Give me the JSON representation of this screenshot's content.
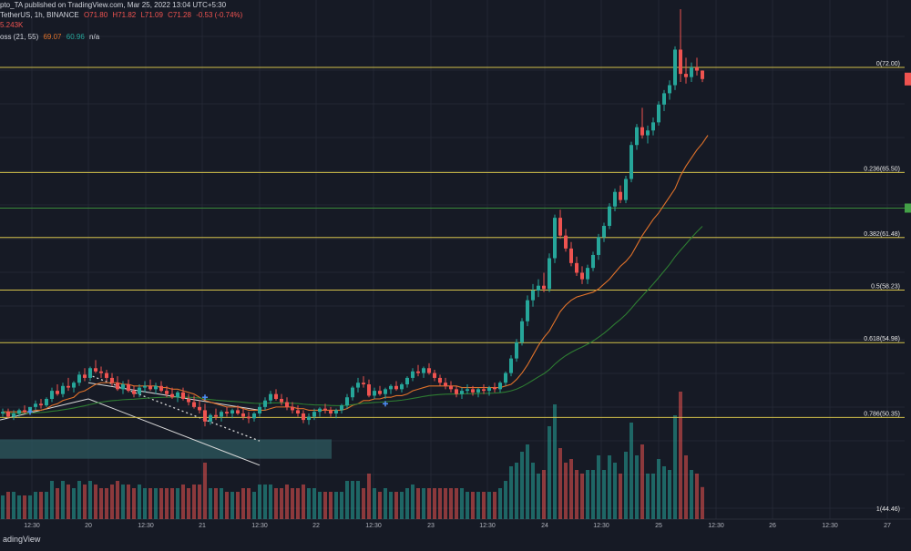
{
  "header": {
    "published": "pto_TA published on TradingView.com, Mar 25, 2022 13:04 UTC+5:30",
    "symbol": "TetherUS, 1h, BINANCE",
    "ohlc": {
      "o": "O71.80",
      "h": "H71.82",
      "l": "L71.09",
      "c": "C71.28",
      "chg": "-0.53 (-0.74%)"
    },
    "volume": "5.243K",
    "indicator": {
      "name": "oss (21, 55)",
      "v1": "69.07",
      "v2": "60.96",
      "v3": "n/a"
    }
  },
  "footer": {
    "brand": "adingView"
  },
  "colors": {
    "background": "#161a25",
    "grid": "#232734",
    "up": "#26a69a",
    "down": "#ef5350",
    "fib": "#d4c14a",
    "ema_fast": "#e0722a",
    "ema_slow": "#2e7d32",
    "text": "#b2b5be",
    "support_line": "#3a8a3a",
    "zone": "#2e5a5f"
  },
  "chart_data": {
    "type": "candlestick",
    "x_tick_labels": [
      "12:30",
      "20",
      "12:30",
      "21",
      "12:30",
      "22",
      "12:30",
      "23",
      "12:30",
      "24",
      "12:30",
      "25",
      "12:30",
      "26",
      "12:30",
      "27"
    ],
    "fib_levels": [
      {
        "label": "0(72.00)",
        "value": 72.0
      },
      {
        "label": "0.236(65.50)",
        "value": 65.5
      },
      {
        "label": "0.382(61.48)",
        "value": 61.48
      },
      {
        "label": "0.5(58.23)",
        "value": 58.23
      },
      {
        "label": "0.618(54.98)",
        "value": 54.98
      },
      {
        "label": "0.786(50.35)",
        "value": 50.35
      },
      {
        "label": "1(44.46)",
        "value": 44.46
      }
    ],
    "ylim": [
      44.46,
      76
    ],
    "support_value": 63.3,
    "current_price": 71.28,
    "candles": [
      [
        50.6,
        50.9,
        50.4,
        50.7
      ],
      [
        50.7,
        50.9,
        50.3,
        50.4
      ],
      [
        50.4,
        50.8,
        50.2,
        50.6
      ],
      [
        50.6,
        50.9,
        50.4,
        50.8
      ],
      [
        50.8,
        51.1,
        50.6,
        50.7
      ],
      [
        50.7,
        51.0,
        50.5,
        51.0
      ],
      [
        51.0,
        51.4,
        50.8,
        51.2
      ],
      [
        51.2,
        51.5,
        50.9,
        51.1
      ],
      [
        51.1,
        51.6,
        51.0,
        51.5
      ],
      [
        51.5,
        52.2,
        51.3,
        52.0
      ],
      [
        52.0,
        52.4,
        51.7,
        51.8
      ],
      [
        51.8,
        52.5,
        51.6,
        52.3
      ],
      [
        52.3,
        52.8,
        52.0,
        52.2
      ],
      [
        52.2,
        52.6,
        51.9,
        52.5
      ],
      [
        52.5,
        53.2,
        52.3,
        53.0
      ],
      [
        53.0,
        53.4,
        52.6,
        52.8
      ],
      [
        52.8,
        53.5,
        52.6,
        53.4
      ],
      [
        53.4,
        53.9,
        53.1,
        53.2
      ],
      [
        53.2,
        53.5,
        52.8,
        53.1
      ],
      [
        53.1,
        53.3,
        52.6,
        52.8
      ],
      [
        52.8,
        53.1,
        52.3,
        52.5
      ],
      [
        52.5,
        52.9,
        52.0,
        52.1
      ],
      [
        52.1,
        52.6,
        51.8,
        52.4
      ],
      [
        52.4,
        52.7,
        51.9,
        52.0
      ],
      [
        52.0,
        52.3,
        51.6,
        51.8
      ],
      [
        51.8,
        52.4,
        51.6,
        52.2
      ],
      [
        52.2,
        52.6,
        51.9,
        52.3
      ],
      [
        52.3,
        52.7,
        52.0,
        52.1
      ],
      [
        52.1,
        52.5,
        51.8,
        52.3
      ],
      [
        52.3,
        52.6,
        51.9,
        52.0
      ],
      [
        52.0,
        52.3,
        51.6,
        51.8
      ],
      [
        51.8,
        52.2,
        51.5,
        51.6
      ],
      [
        51.6,
        52.0,
        51.3,
        51.9
      ],
      [
        51.9,
        52.2,
        51.4,
        51.5
      ],
      [
        51.5,
        51.8,
        51.1,
        51.3
      ],
      [
        51.3,
        51.7,
        50.9,
        51.0
      ],
      [
        51.0,
        51.4,
        50.6,
        50.8
      ],
      [
        50.8,
        51.2,
        49.8,
        50.1
      ],
      [
        50.1,
        50.6,
        49.9,
        50.5
      ],
      [
        50.5,
        50.9,
        50.2,
        50.4
      ],
      [
        50.4,
        50.8,
        50.1,
        50.7
      ],
      [
        50.7,
        51.0,
        50.4,
        50.6
      ],
      [
        50.6,
        50.9,
        50.3,
        50.8
      ],
      [
        50.8,
        51.1,
        50.5,
        50.6
      ],
      [
        50.6,
        50.9,
        50.2,
        50.4
      ],
      [
        50.4,
        50.7,
        50.0,
        50.3
      ],
      [
        50.3,
        50.7,
        50.1,
        50.6
      ],
      [
        50.6,
        51.2,
        50.4,
        51.0
      ],
      [
        51.0,
        51.6,
        50.8,
        51.4
      ],
      [
        51.4,
        52.0,
        51.2,
        51.8
      ],
      [
        51.8,
        52.1,
        51.4,
        51.5
      ],
      [
        51.5,
        51.8,
        51.1,
        51.3
      ],
      [
        51.3,
        51.6,
        50.8,
        51.0
      ],
      [
        51.0,
        51.3,
        50.6,
        50.8
      ],
      [
        50.8,
        51.1,
        50.4,
        50.6
      ],
      [
        50.6,
        50.8,
        50.0,
        50.2
      ],
      [
        50.2,
        50.6,
        49.9,
        50.4
      ],
      [
        50.4,
        50.9,
        50.2,
        50.7
      ],
      [
        50.7,
        51.0,
        50.4,
        50.9
      ],
      [
        50.9,
        51.2,
        50.6,
        50.8
      ],
      [
        50.8,
        51.0,
        50.4,
        50.6
      ],
      [
        50.6,
        50.9,
        50.3,
        50.8
      ],
      [
        50.8,
        51.2,
        50.6,
        51.1
      ],
      [
        51.1,
        51.8,
        50.9,
        51.6
      ],
      [
        51.6,
        52.3,
        51.4,
        52.2
      ],
      [
        52.2,
        52.8,
        51.9,
        52.5
      ],
      [
        52.5,
        52.9,
        52.2,
        52.4
      ],
      [
        52.4,
        52.7,
        51.6,
        51.7
      ],
      [
        51.7,
        52.2,
        51.5,
        52.0
      ],
      [
        52.0,
        52.3,
        51.7,
        51.8
      ],
      [
        51.8,
        52.2,
        51.5,
        52.1
      ],
      [
        52.1,
        52.4,
        51.8,
        52.3
      ],
      [
        52.3,
        52.6,
        52.0,
        52.1
      ],
      [
        52.1,
        52.5,
        51.9,
        52.4
      ],
      [
        52.4,
        52.9,
        52.2,
        52.8
      ],
      [
        52.8,
        53.4,
        52.6,
        53.2
      ],
      [
        53.2,
        53.6,
        52.9,
        53.1
      ],
      [
        53.1,
        53.5,
        52.8,
        53.4
      ],
      [
        53.4,
        53.7,
        53.0,
        53.1
      ],
      [
        53.1,
        53.3,
        52.6,
        52.8
      ],
      [
        52.8,
        53.0,
        52.3,
        52.5
      ],
      [
        52.5,
        52.8,
        52.1,
        52.3
      ],
      [
        52.3,
        52.6,
        51.9,
        52.1
      ],
      [
        52.1,
        52.3,
        51.6,
        51.8
      ],
      [
        51.8,
        52.2,
        51.5,
        52.0
      ],
      [
        52.0,
        52.4,
        51.8,
        52.1
      ],
      [
        52.1,
        52.3,
        51.7,
        51.9
      ],
      [
        51.9,
        52.2,
        51.6,
        52.1
      ],
      [
        52.1,
        52.4,
        51.8,
        52.0
      ],
      [
        52.0,
        52.3,
        51.7,
        52.2
      ],
      [
        52.2,
        52.5,
        51.9,
        52.1
      ],
      [
        52.1,
        52.6,
        51.9,
        52.5
      ],
      [
        52.5,
        53.2,
        52.3,
        53.1
      ],
      [
        53.1,
        54.2,
        52.9,
        54.0
      ],
      [
        54.0,
        55.2,
        53.8,
        55.0
      ],
      [
        55.0,
        56.5,
        54.8,
        56.3
      ],
      [
        56.3,
        57.9,
        56.0,
        57.6
      ],
      [
        57.6,
        58.6,
        57.2,
        58.2
      ],
      [
        58.2,
        58.9,
        57.8,
        58.5
      ],
      [
        58.5,
        59.3,
        58.1,
        58.3
      ],
      [
        58.3,
        60.5,
        58.1,
        60.2
      ],
      [
        60.2,
        62.9,
        59.9,
        62.7
      ],
      [
        62.7,
        63.2,
        61.4,
        61.6
      ],
      [
        61.6,
        62.0,
        60.6,
        60.8
      ],
      [
        60.8,
        61.2,
        59.7,
        59.9
      ],
      [
        59.9,
        60.3,
        59.1,
        59.3
      ],
      [
        59.3,
        59.7,
        58.6,
        58.9
      ],
      [
        58.9,
        59.8,
        58.6,
        59.6
      ],
      [
        59.6,
        60.6,
        59.4,
        60.4
      ],
      [
        60.4,
        61.7,
        60.1,
        61.5
      ],
      [
        61.5,
        62.4,
        61.2,
        62.2
      ],
      [
        62.2,
        63.6,
        62.0,
        63.4
      ],
      [
        63.4,
        64.5,
        63.1,
        64.3
      ],
      [
        64.3,
        64.7,
        63.6,
        63.8
      ],
      [
        63.8,
        65.3,
        63.6,
        65.1
      ],
      [
        65.1,
        67.4,
        64.9,
        67.2
      ],
      [
        67.2,
        68.5,
        66.9,
        68.3
      ],
      [
        68.3,
        69.5,
        67.6,
        67.8
      ],
      [
        67.8,
        68.4,
        67.3,
        68.1
      ],
      [
        68.1,
        68.9,
        67.8,
        68.6
      ],
      [
        68.6,
        69.9,
        68.4,
        69.7
      ],
      [
        69.7,
        70.6,
        69.3,
        70.4
      ],
      [
        70.4,
        71.2,
        70.0,
        70.9
      ],
      [
        70.9,
        73.3,
        70.6,
        73.1
      ],
      [
        73.1,
        75.6,
        71.1,
        71.6
      ],
      [
        71.6,
        72.6,
        71.0,
        71.4
      ],
      [
        71.4,
        72.3,
        71.1,
        72.0
      ],
      [
        72.0,
        72.6,
        71.5,
        71.8
      ],
      [
        71.8,
        71.82,
        71.09,
        71.28
      ]
    ],
    "ema_fast": [
      50.7,
      50.7,
      50.7,
      50.7,
      50.7,
      50.7,
      50.8,
      50.8,
      50.9,
      51.1,
      51.2,
      51.4,
      51.5,
      51.6,
      51.9,
      52.0,
      52.2,
      52.4,
      52.5,
      52.5,
      52.5,
      52.5,
      52.4,
      52.4,
      52.3,
      52.3,
      52.3,
      52.3,
      52.3,
      52.2,
      52.2,
      52.1,
      52.1,
      52.0,
      51.9,
      51.8,
      51.6,
      51.4,
      51.3,
      51.2,
      51.1,
      51.0,
      51.0,
      51.0,
      50.9,
      50.8,
      50.8,
      50.8,
      50.8,
      50.9,
      51.0,
      51.0,
      51.0,
      51.0,
      50.9,
      50.9,
      50.8,
      50.8,
      50.8,
      50.8,
      50.8,
      50.8,
      50.8,
      50.9,
      51.1,
      51.2,
      51.4,
      51.4,
      51.5,
      51.5,
      51.6,
      51.6,
      51.7,
      51.7,
      51.8,
      52.0,
      52.1,
      52.2,
      52.3,
      52.3,
      52.3,
      52.3,
      52.3,
      52.3,
      52.2,
      52.2,
      52.2,
      52.2,
      52.2,
      52.2,
      52.2,
      52.2,
      52.3,
      52.4,
      52.7,
      53.1,
      53.6,
      54.2,
      54.8,
      55.3,
      55.7,
      56.3,
      56.9,
      57.3,
      57.6,
      57.8,
      57.9,
      58.0,
      58.1,
      58.3,
      58.6,
      58.9,
      59.3,
      59.7,
      60.0,
      60.4,
      61.0,
      61.6,
      62.1,
      62.6,
      63.0,
      63.5,
      64.0,
      64.5,
      65.3,
      65.9,
      66.4,
      66.9,
      67.3,
      67.8
    ]
  }
}
